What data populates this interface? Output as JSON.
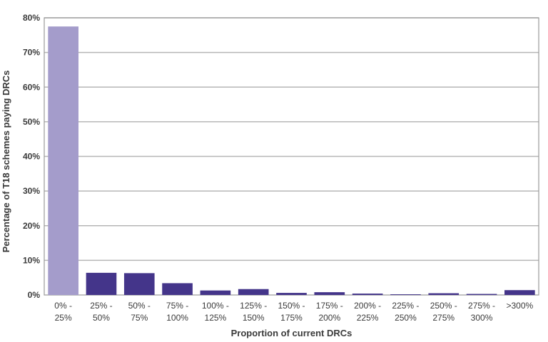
{
  "chart_data": {
    "type": "bar",
    "xlabel": "Proportion of current DRCs",
    "ylabel": "Percentage of T18 schemes paying DRCs",
    "ylim": [
      0,
      80
    ],
    "yticks": [
      "0%",
      "10%",
      "20%",
      "30%",
      "40%",
      "50%",
      "60%",
      "70%",
      "80%"
    ],
    "grid": true,
    "categories": [
      [
        "0% -",
        "25%"
      ],
      [
        "25% -",
        "50%"
      ],
      [
        "50% -",
        "75%"
      ],
      [
        "75% -",
        "100%"
      ],
      [
        "100% -",
        "125%"
      ],
      [
        "125% -",
        "150%"
      ],
      [
        "150% -",
        "175%"
      ],
      [
        "175% -",
        "200%"
      ],
      [
        "200% -",
        "225%"
      ],
      [
        "225% -",
        "250%"
      ],
      [
        "250% -",
        "275%"
      ],
      [
        "275% -",
        "300%"
      ],
      [
        ">300%"
      ]
    ],
    "values": [
      77.5,
      6.4,
      6.3,
      3.4,
      1.3,
      1.7,
      0.6,
      0.8,
      0.4,
      0.2,
      0.5,
      0.3,
      1.4
    ],
    "colors": {
      "highlight_bar": "#a49ccb",
      "bar": "#44358a",
      "grid": "#b6b6b6",
      "axis": "#9a9a9a"
    }
  }
}
